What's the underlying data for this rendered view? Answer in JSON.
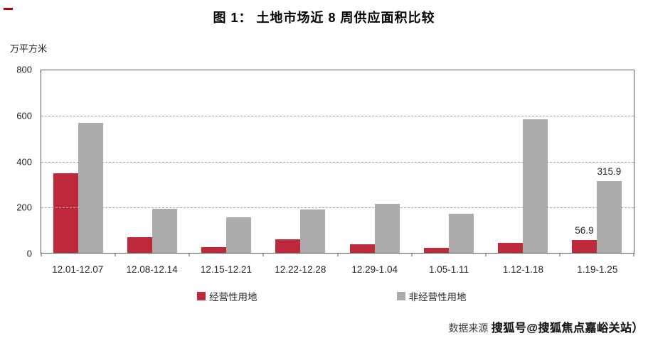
{
  "title": "图 1： 土地市场近 8 周供应面积比较",
  "unit_label": "万平方米",
  "decor": {
    "corner_dash_color": "#c00000"
  },
  "chart_data": {
    "type": "bar",
    "title": "图 1： 土地市场近 8 周供应面积比较",
    "ylabel": "万平方米",
    "xlabel": "",
    "categories": [
      "12.01-12.07",
      "12.08-12.14",
      "12.15-12.21",
      "12.22-12.28",
      "12.29-1.04",
      "1.05-1.11",
      "1.12-1.18",
      "1.19-1.25"
    ],
    "series": [
      {
        "name": "经营性用地",
        "color": "#be2a3c",
        "values": [
          348,
          67,
          25,
          60,
          37,
          22,
          45,
          56.9
        ]
      },
      {
        "name": "非经营性用地",
        "color": "#ababab",
        "values": [
          570,
          192,
          157,
          190,
          215,
          172,
          585,
          315.9
        ]
      }
    ],
    "ylim": [
      0,
      800
    ],
    "yticks": [
      0,
      200,
      400,
      600,
      800
    ],
    "grid": "horizontal dashed",
    "legend_position": "bottom",
    "data_labels": [
      {
        "series_index": 0,
        "category_index": 7,
        "text": "56.9"
      },
      {
        "series_index": 1,
        "category_index": 7,
        "text": "315.9"
      }
    ]
  },
  "footer": {
    "source_label": "数据来源",
    "watermark": "搜狐号@搜狐焦点嘉峪关站）"
  }
}
